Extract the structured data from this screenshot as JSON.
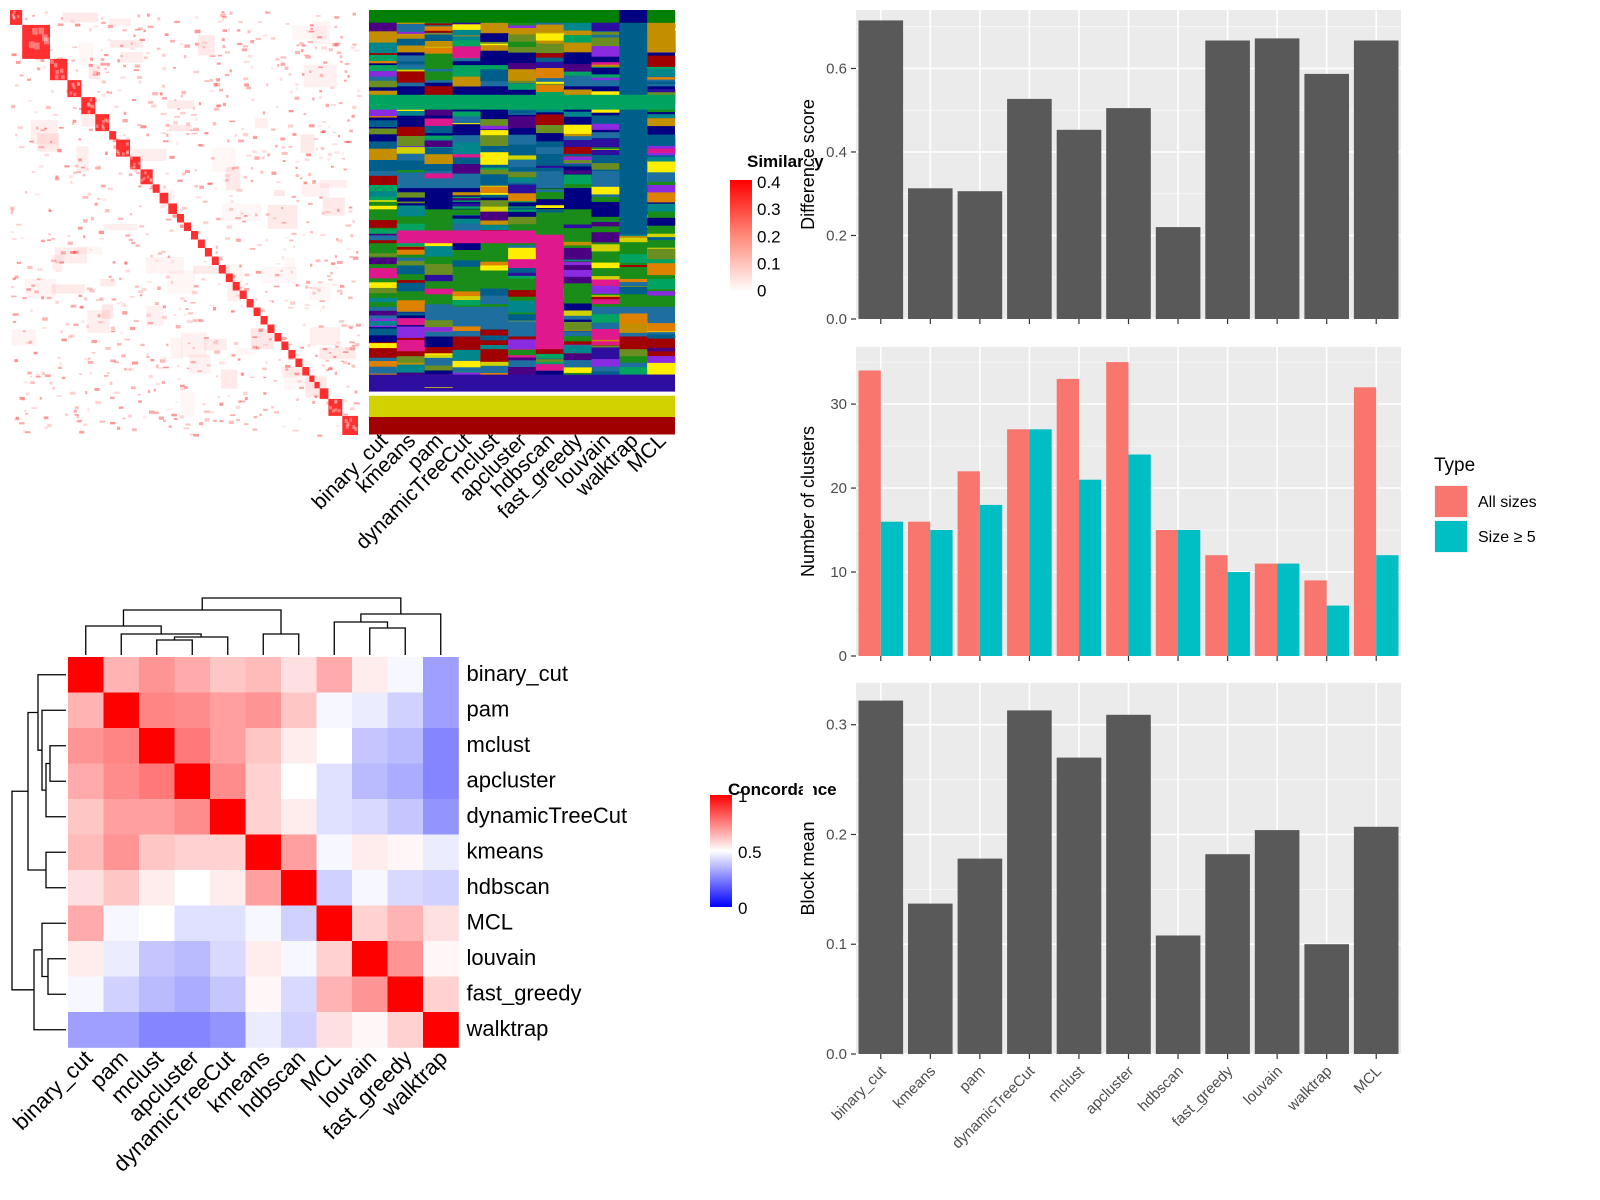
{
  "methods": [
    "binary_cut",
    "kmeans",
    "pam",
    "dynamicTreeCut",
    "mclust",
    "apcluster",
    "hdbscan",
    "fast_greedy",
    "louvain",
    "walktrap",
    "MCL"
  ],
  "similarity_legend": {
    "title": "Similarity",
    "ticks": [
      "0.4",
      "0.3",
      "0.2",
      "0.1",
      "0"
    ]
  },
  "concordance_legend": {
    "title": "Concordance",
    "ticks": [
      "1",
      "0.5",
      "0"
    ]
  },
  "concordance_order": [
    "binary_cut",
    "pam",
    "mclust",
    "apcluster",
    "dynamicTreeCut",
    "kmeans",
    "hdbscan",
    "MCL",
    "louvain",
    "fast_greedy",
    "walktrap"
  ],
  "colors": {
    "bar": "#595959",
    "all_sizes": "#F8766D",
    "size5": "#00BFC4",
    "panel_bg": "#EBEBEB",
    "grid": "#FFFFFF"
  },
  "chart_data": [
    {
      "type": "heatmap",
      "title": "Similarity",
      "description_values": "similarity matrix with block-diagonal clusters",
      "scale": [
        0,
        0.4
      ]
    },
    {
      "type": "heatmap",
      "title": "Concordance",
      "rows": [
        "binary_cut",
        "pam",
        "mclust",
        "apcluster",
        "dynamicTreeCut",
        "kmeans",
        "hdbscan",
        "MCL",
        "louvain",
        "fast_greedy",
        "walktrap"
      ],
      "values": [
        [
          1.0,
          0.7,
          0.78,
          0.72,
          0.65,
          0.68,
          0.58,
          0.72,
          0.55,
          0.48,
          0.25
        ],
        [
          0.7,
          1.0,
          0.82,
          0.8,
          0.75,
          0.78,
          0.65,
          0.48,
          0.45,
          0.38,
          0.25
        ],
        [
          0.78,
          0.82,
          1.0,
          0.85,
          0.75,
          0.65,
          0.55,
          0.5,
          0.35,
          0.32,
          0.18
        ],
        [
          0.72,
          0.8,
          0.85,
          1.0,
          0.8,
          0.62,
          0.5,
          0.42,
          0.32,
          0.28,
          0.18
        ],
        [
          0.65,
          0.75,
          0.75,
          0.8,
          1.0,
          0.62,
          0.55,
          0.42,
          0.4,
          0.35,
          0.22
        ],
        [
          0.68,
          0.78,
          0.65,
          0.62,
          0.62,
          1.0,
          0.75,
          0.48,
          0.55,
          0.52,
          0.45
        ],
        [
          0.58,
          0.65,
          0.55,
          0.5,
          0.55,
          0.75,
          1.0,
          0.38,
          0.48,
          0.4,
          0.38
        ],
        [
          0.72,
          0.48,
          0.5,
          0.42,
          0.42,
          0.48,
          0.38,
          1.0,
          0.62,
          0.7,
          0.58
        ],
        [
          0.55,
          0.45,
          0.35,
          0.32,
          0.4,
          0.55,
          0.48,
          0.62,
          1.0,
          0.78,
          0.52
        ],
        [
          0.48,
          0.38,
          0.32,
          0.28,
          0.35,
          0.52,
          0.4,
          0.7,
          0.78,
          1.0,
          0.62
        ],
        [
          0.25,
          0.25,
          0.18,
          0.18,
          0.22,
          0.45,
          0.38,
          0.58,
          0.52,
          0.62,
          1.0
        ]
      ],
      "scale": [
        0,
        1
      ]
    },
    {
      "type": "bar",
      "categories": [
        "binary_cut",
        "kmeans",
        "pam",
        "dynamicTreeCut",
        "mclust",
        "apcluster",
        "hdbscan",
        "fast_greedy",
        "louvain",
        "walktrap",
        "MCL"
      ],
      "values": [
        0.715,
        0.313,
        0.306,
        0.527,
        0.453,
        0.505,
        0.22,
        0.667,
        0.672,
        0.587,
        0.667
      ],
      "ylabel": "Difference score",
      "ylim": [
        0,
        0.74
      ],
      "yticks": [
        "0.0",
        "0.2",
        "0.4",
        "0.6"
      ]
    },
    {
      "type": "bar",
      "categories": [
        "binary_cut",
        "kmeans",
        "pam",
        "dynamicTreeCut",
        "mclust",
        "apcluster",
        "hdbscan",
        "fast_greedy",
        "louvain",
        "walktrap",
        "MCL"
      ],
      "series": [
        {
          "name": "All sizes",
          "values": [
            34,
            16,
            22,
            27,
            33,
            35,
            15,
            12,
            11,
            9,
            32
          ]
        },
        {
          "name": "Size ≥ 5",
          "values": [
            16,
            15,
            18,
            27,
            21,
            24,
            15,
            10,
            11,
            6,
            12
          ]
        }
      ],
      "ylabel": "Number of clusters",
      "ylim": [
        0,
        36.8
      ],
      "yticks": [
        "0",
        "10",
        "20",
        "30"
      ],
      "legend_title": "Type"
    },
    {
      "type": "bar",
      "categories": [
        "binary_cut",
        "kmeans",
        "pam",
        "dynamicTreeCut",
        "mclust",
        "apcluster",
        "hdbscan",
        "fast_greedy",
        "louvain",
        "walktrap",
        "MCL"
      ],
      "values": [
        0.322,
        0.137,
        0.178,
        0.313,
        0.27,
        0.309,
        0.108,
        0.182,
        0.204,
        0.1,
        0.207
      ],
      "ylabel": "Block mean",
      "ylim": [
        0,
        0.338
      ],
      "yticks": [
        "0.0",
        "0.1",
        "0.2",
        "0.3"
      ]
    }
  ]
}
